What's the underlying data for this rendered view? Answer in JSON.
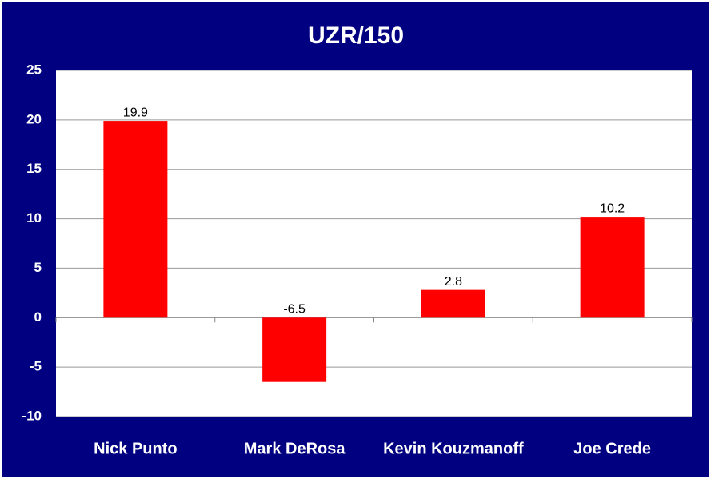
{
  "chart_data": {
    "type": "bar",
    "title": "UZR/150",
    "categories": [
      "Nick Punto",
      "Mark DeRosa",
      "Kevin Kouzmanoff",
      "Joe Crede"
    ],
    "values": [
      19.9,
      -6.5,
      2.8,
      10.2
    ],
    "color": "#ff0000",
    "ylim": [
      -10,
      25
    ],
    "yticks": [
      -10,
      -5,
      0,
      5,
      10,
      15,
      20,
      25
    ],
    "grid": true
  }
}
